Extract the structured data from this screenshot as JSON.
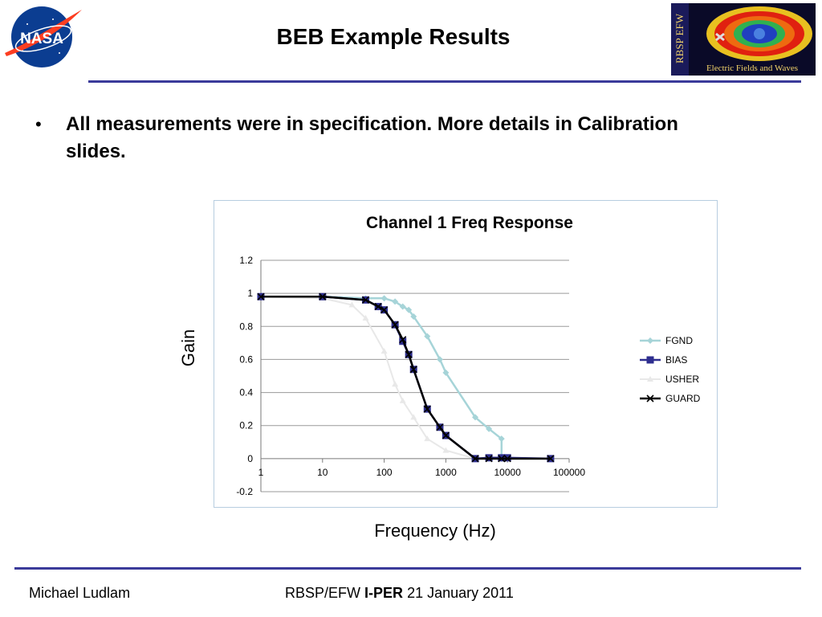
{
  "header": {
    "title": "BEB Example Results",
    "nasa_logo_text": "NASA",
    "efw_logo_vertical_text": "RBSP EFW",
    "efw_logo_caption": "Electric Fields and Waves"
  },
  "bullets": [
    "All measurements were in specification. More details in Calibration slides."
  ],
  "axis_titles": {
    "y": "Gain",
    "x": "Frequency (Hz)"
  },
  "footer": {
    "author": "Michael Ludlam",
    "project_prefix": "RBSP/EFW",
    "project_bold": "I-PER",
    "date": "21 January 2011"
  },
  "colors": {
    "rule": "#3b3b9a",
    "FGND": "#a6d4d8",
    "BIAS": "#2e2e8f",
    "USHER": "#e8e8e8",
    "GUARD": "#000000",
    "grid": "#9a9a9a"
  },
  "chart_data": {
    "type": "line",
    "title": "Channel 1 Freq Response",
    "xlabel": "Frequency (Hz)",
    "ylabel": "Gain",
    "x_scale": "log",
    "xlim": [
      1,
      100000
    ],
    "ylim": [
      -0.2,
      1.2
    ],
    "x_ticks": [
      "1",
      "10",
      "100",
      "1000",
      "10000",
      "100000"
    ],
    "y_ticks": [
      "-0.2",
      "0",
      "0.2",
      "0.4",
      "0.6",
      "0.8",
      "1",
      "1.2"
    ],
    "grid": true,
    "legend_position": "right",
    "series": [
      {
        "name": "FGND",
        "marker": "diamond",
        "x": [
          1,
          10,
          50,
          100,
          150,
          200,
          250,
          300,
          500,
          800,
          1000,
          3000,
          5000,
          8000,
          8000
        ],
        "y": [
          0.98,
          0.98,
          0.97,
          0.97,
          0.95,
          0.92,
          0.9,
          0.86,
          0.74,
          0.6,
          0.52,
          0.25,
          0.18,
          0.12,
          0.0
        ]
      },
      {
        "name": "BIAS",
        "marker": "square",
        "x": [
          1,
          10,
          50,
          80,
          100,
          150,
          200,
          250,
          300,
          500,
          800,
          1000,
          3000,
          5000,
          8000,
          10000,
          50000
        ],
        "y": [
          0.98,
          0.98,
          0.96,
          0.92,
          0.9,
          0.81,
          0.71,
          0.63,
          0.54,
          0.3,
          0.19,
          0.14,
          0.0,
          0.005,
          0.005,
          0.005,
          0.0
        ]
      },
      {
        "name": "USHER",
        "marker": "triangle",
        "x": [
          1,
          10,
          30,
          50,
          100,
          150,
          200,
          300,
          500,
          1000,
          3000
        ],
        "y": [
          0.98,
          0.97,
          0.93,
          0.85,
          0.65,
          0.45,
          0.35,
          0.25,
          0.12,
          0.05,
          0.0
        ]
      },
      {
        "name": "GUARD",
        "marker": "x",
        "x": [
          1,
          10,
          50,
          80,
          100,
          150,
          200,
          250,
          300,
          500,
          800,
          1000,
          3000,
          5000,
          8000,
          10000,
          50000
        ],
        "y": [
          0.98,
          0.98,
          0.96,
          0.92,
          0.9,
          0.81,
          0.72,
          0.63,
          0.54,
          0.3,
          0.19,
          0.14,
          0.0,
          0.0,
          0.0,
          0.0,
          0.0
        ]
      }
    ]
  }
}
